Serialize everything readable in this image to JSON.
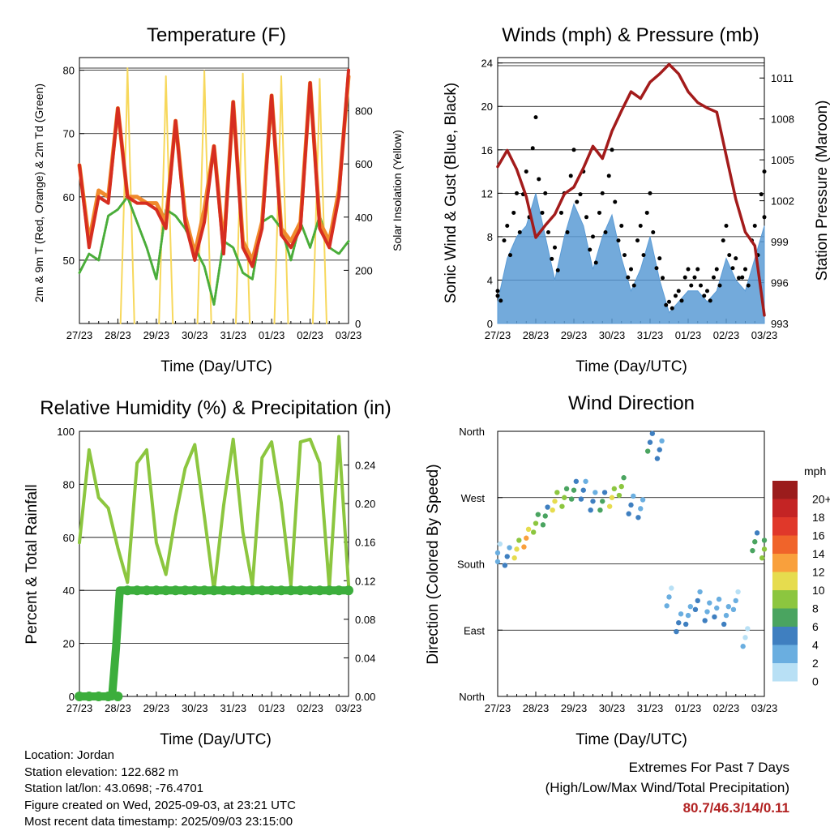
{
  "colors": {
    "temp2m": "#d62d20",
    "temp9m": "#f08a2c",
    "dewpoint": "#4aad3a",
    "solar": "#f7d85c",
    "wind": "#5b9bd5",
    "gust": "#000000",
    "pressure": "#a31b1b",
    "rh": "#8cc63f",
    "precip": "#3cae3c",
    "extremes": "#b22222"
  },
  "x_tick_labels": [
    "27/23",
    "28/23",
    "29/23",
    "30/23",
    "31/23",
    "01/23",
    "02/23",
    "03/23"
  ],
  "panels": {
    "temperature": {
      "title": "Temperature (F)",
      "xlabel": "Time (Day/UTC)",
      "ylabel_left": "2m & 9m T (Red, Orange) & 2m Td (Green)",
      "ylabel_right": "Solar Insolation (Yellow)",
      "yticks_left": [
        "50",
        "60",
        "70",
        "80"
      ],
      "yticks_right": [
        "0",
        "200",
        "400",
        "600",
        "800"
      ]
    },
    "winds": {
      "title": "Winds (mph) & Pressure (mb)",
      "xlabel": "Time (Day/UTC)",
      "ylabel_left": "Sonic Wind & Gust (Blue, Black)",
      "ylabel_right": "Station Pressure (Maroon)",
      "yticks_left": [
        "0",
        "4",
        "8",
        "12",
        "16",
        "20",
        "24"
      ],
      "yticks_right": [
        "993",
        "996",
        "999",
        "1002",
        "1005",
        "1008",
        "1011"
      ]
    },
    "humidity": {
      "title": "Relative Humidity (%) & Precipitation (in)",
      "xlabel": "Time (Day/UTC)",
      "ylabel_left": "Percent & Total Rainfall",
      "yticks_left": [
        "0",
        "20",
        "40",
        "60",
        "80",
        "100"
      ],
      "yticks_right": [
        "0.00",
        "0.04",
        "0.08",
        "0.12",
        "0.16",
        "0.20",
        "0.24"
      ]
    },
    "direction": {
      "title": "Wind Direction",
      "xlabel": "Time (Day/UTC)",
      "ylabel_left": "Direction (Colored By Speed)",
      "yticks_left": [
        "North",
        "East",
        "South",
        "West",
        "North"
      ],
      "colorbar_title": "mph",
      "colorbar_labels": [
        "20+",
        "18",
        "16",
        "14",
        "12",
        "10",
        "8",
        "6",
        "4",
        "2",
        "0"
      ],
      "colorbar_colors": [
        "#9b1c1c",
        "#c42424",
        "#e0382a",
        "#f0642a",
        "#f9a03c",
        "#e6dc4e",
        "#8cc63f",
        "#4aa460",
        "#3f7fc0",
        "#6aaee0",
        "#b8e0f5"
      ]
    }
  },
  "info": {
    "location": "Location: Jordan",
    "elevation": "Station elevation: 122.682 m",
    "latlon": "Station lat/lon: 43.0698; -76.4701",
    "created": "Figure created on Wed, 2025-09-03, at 23:21 UTC",
    "recent": "Most recent data timestamp: 2025/09/03 23:15:00"
  },
  "extremes": {
    "line1": "Extremes For Past 7 Days",
    "line2": "(High/Low/Max Wind/Total Precipitation)",
    "values": "80.7/46.3/14/0.11"
  },
  "chart_data": [
    {
      "type": "line",
      "title": "Temperature (F)",
      "xlabel": "Time (Day/UTC)",
      "x": [
        0,
        0.25,
        0.5,
        0.75,
        1,
        1.25,
        1.5,
        1.75,
        2,
        2.25,
        2.5,
        2.75,
        3,
        3.25,
        3.5,
        3.75,
        4,
        4.25,
        4.5,
        4.75,
        5,
        5.25,
        5.5,
        5.75,
        6,
        6.25,
        6.5,
        6.75,
        7
      ],
      "ylim": [
        40,
        82
      ],
      "y2lim": [
        0,
        1000
      ],
      "series": [
        {
          "name": "2m T",
          "values": [
            65,
            52,
            60,
            59,
            74,
            60,
            59,
            59,
            58,
            55,
            72,
            56,
            50,
            56,
            68,
            51,
            75,
            52,
            49,
            55,
            76,
            54,
            52,
            55,
            78,
            55,
            52,
            60,
            80
          ]
        },
        {
          "name": "9m T",
          "values": [
            65,
            53,
            61,
            60,
            74,
            60,
            60,
            59,
            59,
            56,
            72,
            57,
            51,
            58,
            68,
            52,
            75,
            53,
            50,
            56,
            76,
            55,
            53,
            56,
            78,
            56,
            53,
            61,
            79
          ]
        },
        {
          "name": "2m Td",
          "values": [
            48,
            51,
            50,
            57,
            58,
            60,
            56,
            52,
            47,
            58,
            57,
            55,
            52,
            49,
            43,
            53,
            52,
            48,
            47,
            56,
            57,
            55,
            50,
            56,
            52,
            57,
            52,
            51,
            53
          ]
        },
        {
          "name": "Solar Insolation",
          "axis": "right",
          "values": [
            0,
            0,
            0,
            0,
            0,
            960,
            0,
            0,
            0,
            930,
            0,
            0,
            0,
            950,
            0,
            0,
            0,
            940,
            0,
            0,
            0,
            930,
            0,
            0,
            0,
            920,
            0,
            0,
            0
          ]
        }
      ]
    },
    {
      "type": "line",
      "title": "Winds (mph) & Pressure (mb)",
      "xlabel": "Time (Day/UTC)",
      "x": [
        0,
        0.25,
        0.5,
        0.75,
        1,
        1.25,
        1.5,
        1.75,
        2,
        2.25,
        2.5,
        2.75,
        3,
        3.25,
        3.5,
        3.75,
        4,
        4.25,
        4.5,
        4.75,
        5,
        5.25,
        5.5,
        5.75,
        6,
        6.25,
        6.5,
        6.75,
        7
      ],
      "ylim": [
        0,
        24.5
      ],
      "y2lim": [
        993,
        1012.5
      ],
      "series": [
        {
          "name": "Sonic Wind",
          "values": [
            2,
            6,
            8,
            9,
            12,
            8,
            4,
            8,
            11,
            9,
            5,
            8,
            10,
            6,
            3,
            5,
            8,
            4,
            1,
            2,
            3,
            3,
            2,
            3,
            6,
            4,
            3,
            6,
            9
          ]
        },
        {
          "name": "Gust",
          "values": [
            3,
            9,
            12,
            14,
            19,
            12,
            7,
            12,
            16,
            14,
            8,
            12,
            16,
            9,
            5,
            9,
            12,
            6,
            2,
            3,
            5,
            5,
            3,
            5,
            9,
            6,
            5,
            9,
            14
          ]
        },
        {
          "name": "Station Pressure",
          "axis": "right",
          "values": [
            1004.5,
            1005.7,
            1004.3,
            1002.3,
            999.3,
            1000.2,
            1001,
            1002.5,
            1003,
            1004.4,
            1006,
            1005.1,
            1007.1,
            1008.6,
            1010,
            1009.5,
            1010.7,
            1011.3,
            1012,
            1011.3,
            1010,
            1009.2,
            1008.8,
            1008.5,
            1005.3,
            1002.1,
            999.7,
            998.7,
            993.6
          ]
        }
      ]
    },
    {
      "type": "line",
      "title": "Relative Humidity (%) & Precipitation (in)",
      "xlabel": "Time (Day/UTC)",
      "x": [
        0,
        0.25,
        0.5,
        0.75,
        1,
        1.25,
        1.5,
        1.75,
        2,
        2.25,
        2.5,
        2.75,
        3,
        3.25,
        3.5,
        3.75,
        4,
        4.25,
        4.5,
        4.75,
        5,
        5.25,
        5.5,
        5.75,
        6,
        6.25,
        6.5,
        6.75,
        7
      ],
      "ylim": [
        0,
        100
      ],
      "y2lim": [
        0,
        0.275
      ],
      "series": [
        {
          "name": "Relative Humidity",
          "values": [
            58,
            93,
            75,
            71,
            56,
            43,
            88,
            93,
            58,
            46,
            68,
            86,
            95,
            68,
            40,
            72,
            97,
            62,
            42,
            90,
            96,
            73,
            42,
            96,
            97,
            88,
            41,
            98,
            42
          ]
        },
        {
          "name": "Total Precipitation",
          "axis": "right",
          "values": [
            0,
            0,
            0,
            0,
            0,
            0.11,
            0.11,
            0.11,
            0.11,
            0.11,
            0.11,
            0.11,
            0.11,
            0.11,
            0.11,
            0.11,
            0.11,
            0.11,
            0.11,
            0.11,
            0.11,
            0.11,
            0.11,
            0.11,
            0.11,
            0.11,
            0.11,
            0.11,
            0.11
          ]
        }
      ]
    },
    {
      "type": "scatter",
      "title": "Wind Direction",
      "xlabel": "Time (Day/UTC)",
      "ylabel": "Direction (Colored By Speed)",
      "x": [
        0,
        0.25,
        0.5,
        0.75,
        1,
        1.25,
        1.5,
        1.75,
        2,
        2.25,
        2.5,
        2.75,
        3,
        3.25,
        3.5,
        3.75,
        4,
        4.25,
        4.5,
        4.75,
        5,
        5.25,
        5.5,
        5.75,
        6,
        6.25,
        6.5,
        6.75,
        7
      ],
      "direction_deg": [
        195,
        190,
        200,
        215,
        235,
        245,
        265,
        270,
        280,
        280,
        265,
        265,
        270,
        285,
        260,
        255,
        345,
        335,
        135,
        100,
        110,
        130,
        115,
        120,
        110,
        130,
        80,
        210,
        200
      ],
      "speed_mph": [
        2,
        4,
        10,
        12,
        8,
        6,
        10,
        8,
        6,
        4,
        4,
        6,
        10,
        8,
        4,
        3,
        5,
        4,
        2,
        4,
        3,
        4,
        3,
        3,
        3,
        2,
        1,
        6,
        8
      ]
    }
  ]
}
